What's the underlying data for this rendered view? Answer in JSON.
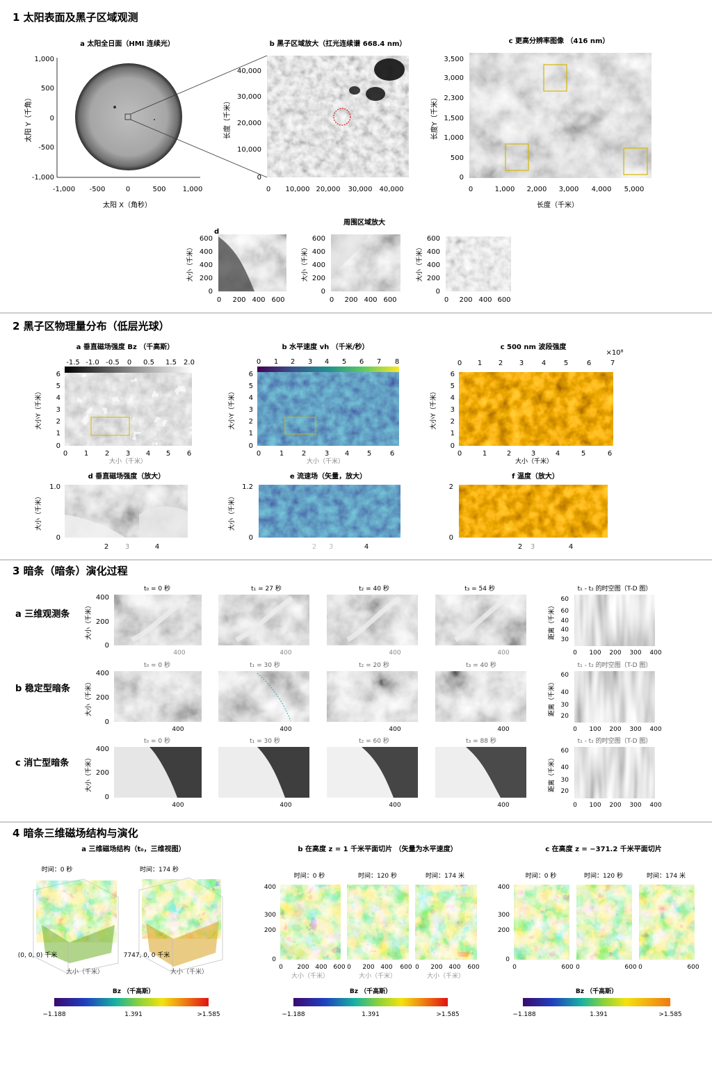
{
  "sections": {
    "s1": {
      "title": "1  太阳表面及黑子区域观测",
      "a": {
        "title": "a  太阳全日面（HMI 连续光）",
        "yticks": [
          "1,000",
          "500",
          "0",
          "-500",
          "-1,000"
        ],
        "xticks": [
          "-1,000",
          "-500",
          "0",
          "500",
          "1,000"
        ],
        "xlabel": "太阳 X（角秒）",
        "ylabel": "太阳 Y（千角）"
      },
      "b": {
        "title": "b  黑子区域放大（扛光连续谱 668.4 nm）",
        "yticks": [
          "40,000",
          "30,000",
          "20,000",
          "10,000",
          "0"
        ],
        "xticks": [
          "0",
          "10,000",
          "20,000",
          "30,000",
          "40,000"
        ],
        "ylabel": "长度（千米）"
      },
      "c": {
        "title": "c  更高分辨率图像 （416 nm）",
        "yticks": [
          "3,500",
          "3,000",
          "2,300",
          "1,500",
          "1,000",
          "500",
          "0"
        ],
        "xticks": [
          "0",
          "1,000",
          "2,000",
          "3,000",
          "4,000",
          "5,000"
        ],
        "xlabel": "长度（千米）",
        "ylabel": "长度Y（千米）"
      },
      "d": {
        "title": "周围区域放大",
        "label": "d",
        "yticks": [
          "600",
          "400",
          "200",
          "0"
        ],
        "xticks": [
          "0",
          "200",
          "400",
          "600"
        ],
        "ylabel": "大小（千米）"
      }
    },
    "s2": {
      "title": "2  黑子区物理量分布（低层光球）",
      "a": {
        "title": "a  垂直磁场强度 Bz （千高斯）",
        "cbticks": [
          "-1.5",
          "-1.0",
          "-0.5",
          "0",
          "0.5",
          "1.5",
          "2.0"
        ]
      },
      "b": {
        "title": "b  水平速度 vh （千米/秒）",
        "cbticks": [
          "0",
          "1",
          "2",
          "3",
          "4",
          "5",
          "6",
          "7",
          "8"
        ]
      },
      "c": {
        "title": "c  500 nm 波段强度",
        "cbticks": [
          "0",
          "1",
          "2",
          "3",
          "4",
          "5",
          "6",
          "7"
        ],
        "exp": "×10⁸"
      },
      "axes": {
        "yticks": [
          "6",
          "5",
          "4",
          "3",
          "2",
          "1",
          "0"
        ],
        "xticks": [
          "0",
          "1",
          "2",
          "3",
          "4",
          "5",
          "6"
        ],
        "xlabel": "大小（千米）",
        "ylabel": "大小Y（千米）"
      },
      "d": {
        "title": "d  垂直磁场强度（放大）",
        "yticks": [
          "1.0",
          "0"
        ],
        "xticks": [
          "2",
          "3",
          "4"
        ]
      },
      "e": {
        "title": "e  流速场（矢量，放大）",
        "yticks": [
          "1.2",
          "0"
        ],
        "xticks": [
          "2",
          "3",
          "4"
        ]
      },
      "f": {
        "title": "f  温度（放大）",
        "yticks": [
          "2",
          "0"
        ],
        "xticks": [
          "2",
          "3",
          "4"
        ]
      },
      "ylab_small": "大小（千米）"
    },
    "s3": {
      "title": "3  暗条（暗条）演化过程",
      "rows": [
        {
          "label": "a  三维观测条",
          "times": [
            "t₀ = 0 秒",
            "t₁ = 27 秒",
            "t₂ = 40 秒",
            "t₃ = 54 秒"
          ],
          "td": "t₁ - t₂ 的时空图（T-D 图）",
          "tdy": [
            "60",
            "60",
            "40",
            "40",
            "30"
          ]
        },
        {
          "label": "b  稳定型暗条",
          "times": [
            "t₀ = 0 秒",
            "t₁ = 30 秒",
            "t₂ = 20 秒",
            "t₃ = 40 秒"
          ],
          "td": "t₁ - t₂ 的时空图（T-D 图）",
          "tdy": [
            "60",
            "40",
            "30",
            "20"
          ]
        },
        {
          "label": "c  消亡型暗条",
          "times": [
            "t₀ = 0 秒",
            "t₁ = 30 秒",
            "t₂ = 60 秒",
            "t₃ = 88 秒"
          ],
          "td": "t₁ - t₂ 的时空图（T-D 图）",
          "tdy": [
            "60",
            "40",
            "30",
            "20"
          ]
        }
      ],
      "yticks": [
        "400",
        "200",
        "0"
      ],
      "xtick": "400",
      "ylabel": "大小（千米）",
      "tdx": [
        "0",
        "100",
        "200",
        "300",
        "400"
      ],
      "tdylabel": "距离（千米）"
    },
    "s4": {
      "title": "4  暗条三维磁场结构与演化",
      "a": {
        "title": "a  三维磁场结构（t₀，三维视图）",
        "t0": "时间：0 秒",
        "t1": "时间：174 秒",
        "origin1": "(0, 0, 0) 千米",
        "origin2": "7747, 0, 0 千米",
        "axisx": "大小（千米）"
      },
      "b": {
        "title": "b  在高度 z = 1 千米平面切片 （矢量为水平速度）",
        "times": [
          "时间：0 秒",
          "时间：120 秒",
          "时间：174 米"
        ],
        "yticks": [
          "400",
          "300",
          "200",
          "0"
        ],
        "xticks": [
          "0",
          "200",
          "400",
          "600"
        ],
        "xlabel": "大小（千米）"
      },
      "c": {
        "title": "c  在高度 z = −371.2 千米平面切片",
        "times": [
          "时间：0 秒",
          "时间：120 秒",
          "时间：174 米"
        ],
        "yticks": [
          "400",
          "300",
          "200",
          "0"
        ],
        "xticks": [
          "0",
          "200",
          "400",
          "600"
        ]
      },
      "colorbar": {
        "label": "Bz （千高斯）",
        "min": "−1.188",
        "mid": "1.391",
        "max": ">1.585"
      }
    }
  },
  "colors": {
    "divider": "#9a9a9a",
    "box": "#d4b800",
    "accent_red": "#d02020"
  }
}
